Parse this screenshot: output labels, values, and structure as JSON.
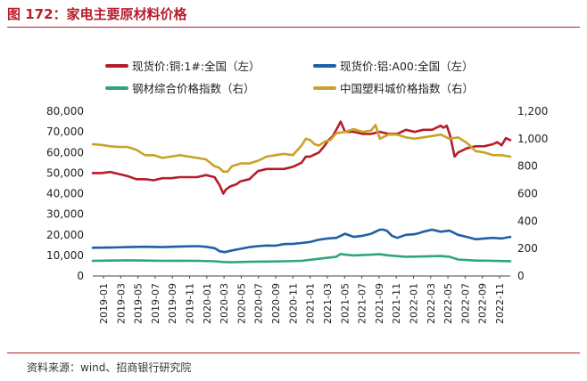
{
  "header": {
    "title": "图 172：家电主要原材料价格"
  },
  "footer": {
    "source": "资料来源：wind、招商银行研究院"
  },
  "chart_data": {
    "type": "line",
    "title": "图 172：家电主要原材料价格",
    "x_ticks": [
      "2019-01",
      "2019-03",
      "2019-05",
      "2019-07",
      "2019-09",
      "2019-11",
      "2020-01",
      "2020-03",
      "2020-05",
      "2020-07",
      "2020-09",
      "2020-11",
      "2021-01",
      "2021-03",
      "2021-05",
      "2021-07",
      "2021-09",
      "2021-11",
      "2022-01",
      "2022-03",
      "2022-05",
      "2022-07",
      "2022-09",
      "2022-11"
    ],
    "x_range": [
      0,
      48
    ],
    "y_left": {
      "ticks": [
        "0",
        "10,000",
        "20,000",
        "30,000",
        "40,000",
        "50,000",
        "60,000",
        "70,000",
        "80,000"
      ],
      "ylim": [
        0,
        80000
      ]
    },
    "y_right": {
      "ticks": [
        "0",
        "200",
        "400",
        "600",
        "800",
        "1,000",
        "1,200"
      ],
      "ylim": [
        0,
        1200
      ]
    },
    "legend": "top",
    "series": [
      {
        "name": "现货价:铜:1#:全国（左）",
        "axis": "left",
        "color": "#b81c2b",
        "x": [
          0,
          1,
          2,
          3,
          4,
          5,
          6,
          7,
          8,
          9,
          10,
          11,
          12,
          13,
          14,
          14.6,
          15,
          15.3,
          15.8,
          16.5,
          17,
          18,
          19,
          20,
          21,
          22,
          23,
          24,
          24.5,
          25,
          25.5,
          26,
          26.7,
          27.1,
          27.6,
          28,
          28.5,
          29,
          30,
          31,
          32,
          33,
          34,
          35,
          36,
          37,
          38,
          39,
          40,
          40.3,
          40.7,
          41.1,
          41.6,
          42,
          43,
          44,
          45,
          46,
          46.5,
          47,
          47.5,
          48
        ],
        "values": [
          50000,
          50000,
          50500,
          49500,
          48500,
          47000,
          47000,
          46500,
          47500,
          47500,
          48000,
          48000,
          48000,
          49000,
          48000,
          44000,
          40000,
          42000,
          43500,
          44500,
          46000,
          47000,
          51000,
          52000,
          52000,
          52000,
          53000,
          55000,
          58000,
          58000,
          59000,
          60000,
          63500,
          66000,
          68000,
          71000,
          75000,
          70000,
          70000,
          69000,
          69000,
          70000,
          69000,
          69000,
          71000,
          70000,
          71000,
          71000,
          73000,
          72000,
          73000,
          68000,
          58000,
          60000,
          62000,
          63000,
          63000,
          64000,
          65000,
          63500,
          67000,
          66000
        ]
      },
      {
        "name": "现货价:铝:A00:全国（左）",
        "axis": "left",
        "color": "#1f5fa6",
        "x": [
          0,
          2,
          4,
          6,
          8,
          10,
          12,
          13,
          14,
          14.6,
          15.2,
          16,
          17,
          18,
          19,
          20,
          21,
          22,
          23,
          24,
          25,
          26,
          27,
          28,
          28.5,
          29,
          30,
          31,
          32,
          32.5,
          33,
          33.4,
          33.8,
          34.4,
          35,
          36,
          37,
          37.5,
          38,
          39,
          40,
          41,
          41.5,
          42,
          43,
          44,
          45,
          46,
          47,
          48
        ],
        "values": [
          13700,
          13800,
          14000,
          14200,
          14000,
          14300,
          14500,
          14200,
          13500,
          12000,
          11600,
          12400,
          13200,
          14000,
          14500,
          14800,
          14700,
          15500,
          15600,
          16000,
          16500,
          17600,
          18200,
          18500,
          19500,
          20500,
          19000,
          19500,
          20500,
          21500,
          22500,
          22500,
          22000,
          19500,
          18500,
          20000,
          20300,
          20800,
          21500,
          22500,
          21500,
          22000,
          21000,
          20000,
          19000,
          17800,
          18200,
          18500,
          18200,
          19000
        ]
      },
      {
        "name": "钢材综合价格指数（右）",
        "axis": "right",
        "color": "#2ea67c",
        "x": [
          0,
          2,
          4,
          6,
          8,
          10,
          12,
          14,
          15,
          16,
          18,
          20,
          22,
          24,
          26,
          28,
          28.5,
          29,
          30,
          32,
          33,
          34,
          36,
          38,
          40,
          41,
          42,
          44,
          46,
          48
        ],
        "values": [
          110,
          112,
          114,
          112,
          110,
          111,
          110,
          107,
          102,
          100,
          103,
          105,
          107,
          110,
          125,
          140,
          160,
          155,
          150,
          155,
          158,
          150,
          140,
          142,
          145,
          140,
          120,
          112,
          110,
          108
        ]
      },
      {
        "name": "中国塑料城价格指数（右）",
        "axis": "right",
        "color": "#c9a227",
        "x": [
          0,
          1,
          2,
          3,
          4,
          5,
          6,
          7,
          8,
          9,
          10,
          11,
          12,
          13,
          14,
          14.5,
          15,
          15.5,
          16,
          17,
          18,
          19,
          20,
          21,
          22,
          23,
          24,
          24.5,
          25,
          25.5,
          26,
          26.7,
          27.3,
          28,
          29,
          29.5,
          30,
          31,
          32,
          32.5,
          33,
          34,
          35,
          36,
          37,
          38,
          39,
          40,
          41,
          42,
          43,
          44,
          45,
          46,
          47,
          48
        ],
        "values": [
          960,
          955,
          945,
          940,
          940,
          920,
          880,
          880,
          860,
          870,
          880,
          870,
          860,
          850,
          800,
          790,
          760,
          760,
          800,
          820,
          820,
          840,
          870,
          880,
          890,
          880,
          950,
          1000,
          990,
          960,
          950,
          980,
          990,
          1040,
          1050,
          1060,
          1070,
          1050,
          1060,
          1100,
          1000,
          1030,
          1030,
          1010,
          1000,
          1010,
          1020,
          1030,
          1000,
          1010,
          970,
          910,
          900,
          880,
          880,
          870
        ]
      }
    ]
  }
}
